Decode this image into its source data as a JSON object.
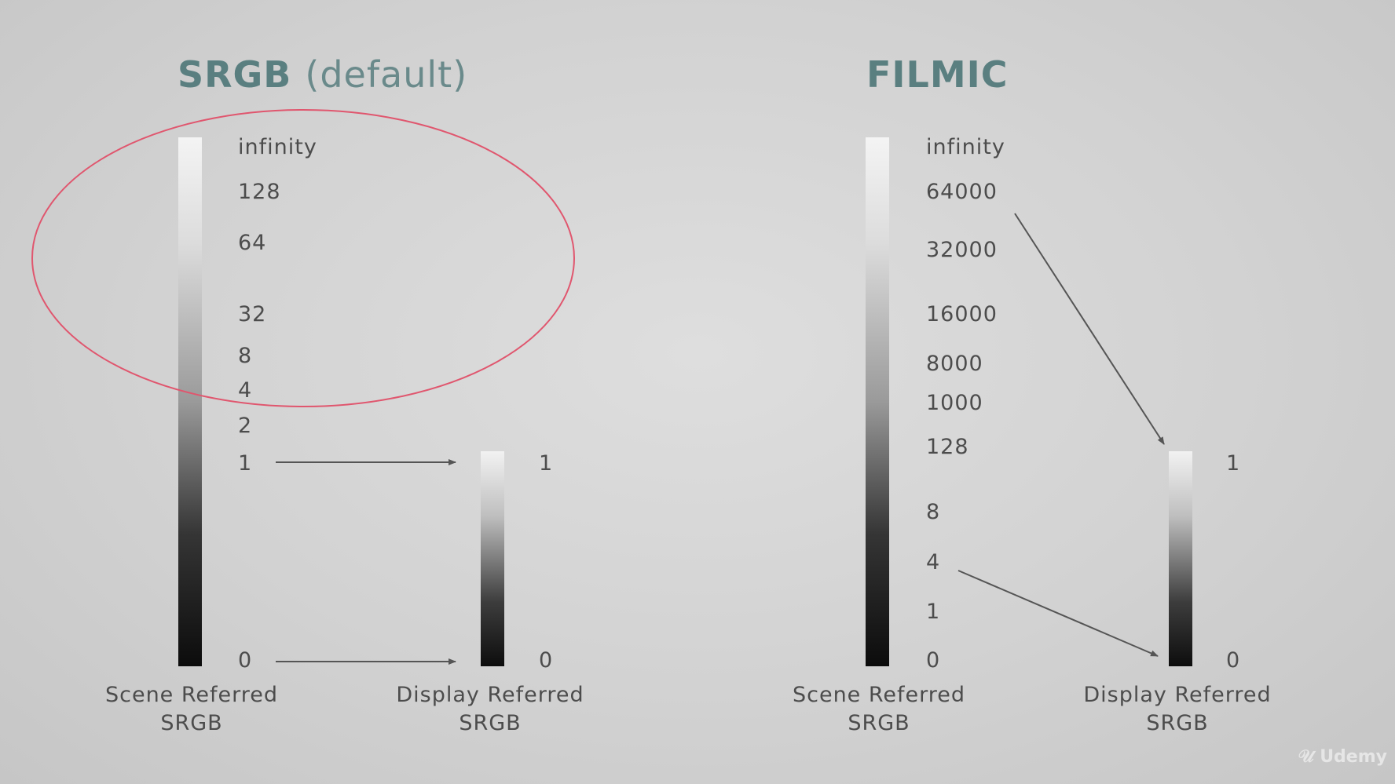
{
  "colors": {
    "title": "#5a7f80",
    "highlight_ellipse": "#e0566e",
    "arrow": "#555555"
  },
  "srgb": {
    "title": "SRGB",
    "title_suffix": "(default)",
    "scene_labels": [
      "infinity",
      "128",
      "64",
      "32",
      "8",
      "4",
      "2",
      "1",
      "0"
    ],
    "display_labels": [
      "1",
      "0"
    ],
    "scene_caption": [
      "Scene Referred",
      "SRGB"
    ],
    "display_caption": [
      "Display Referred",
      "SRGB"
    ]
  },
  "filmic": {
    "title": "FILMIC",
    "scene_labels": [
      "infinity",
      "64000",
      "32000",
      "16000",
      "8000",
      "1000",
      "128",
      "8",
      "4",
      "1",
      "0"
    ],
    "display_labels": [
      "1",
      "0"
    ],
    "scene_caption": [
      "Scene Referred",
      "SRGB"
    ],
    "display_caption": [
      "Display Referred",
      "SRGB"
    ]
  },
  "watermark": "Udemy"
}
